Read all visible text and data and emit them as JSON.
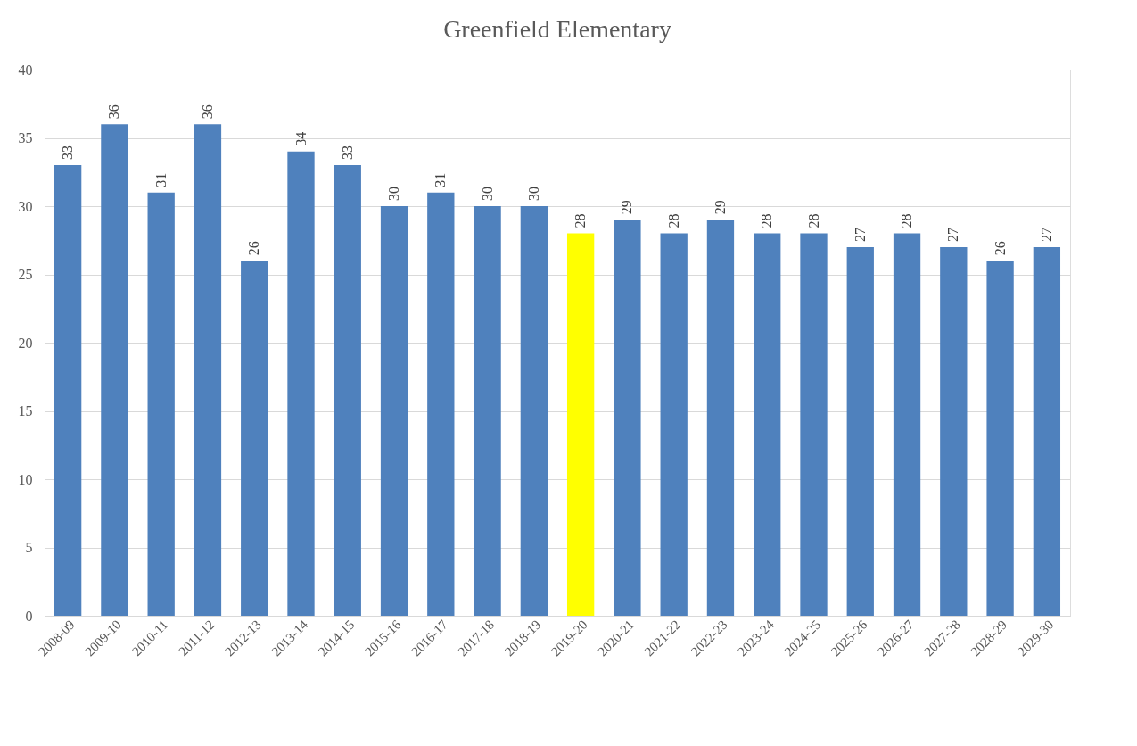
{
  "chart_data": {
    "type": "bar",
    "title": "Greenfield Elementary",
    "categories": [
      "2008-09",
      "2009-10",
      "2010-11",
      "2011-12",
      "2012-13",
      "2013-14",
      "2014-15",
      "2015-16",
      "2016-17",
      "2017-18",
      "2018-19",
      "2019-20",
      "2020-21",
      "2021-22",
      "2022-23",
      "2023-24",
      "2024-25",
      "2025-26",
      "2026-27",
      "2027-28",
      "2028-29",
      "2029-30"
    ],
    "values": [
      33,
      36,
      31,
      36,
      26,
      34,
      33,
      30,
      31,
      30,
      30,
      28,
      29,
      28,
      29,
      28,
      28,
      27,
      28,
      27,
      26,
      27
    ],
    "colors": [
      "#4f81bd",
      "#4f81bd",
      "#4f81bd",
      "#4f81bd",
      "#4f81bd",
      "#4f81bd",
      "#4f81bd",
      "#4f81bd",
      "#4f81bd",
      "#4f81bd",
      "#4f81bd",
      "#ffff00",
      "#4f81bd",
      "#4f81bd",
      "#4f81bd",
      "#4f81bd",
      "#4f81bd",
      "#4f81bd",
      "#4f81bd",
      "#4f81bd",
      "#4f81bd",
      "#4f81bd"
    ],
    "ylim": [
      0,
      40
    ],
    "yticks": [
      0,
      5,
      10,
      15,
      20,
      25,
      30,
      35,
      40
    ],
    "grid": "y",
    "data_labels": true,
    "legend": false
  }
}
